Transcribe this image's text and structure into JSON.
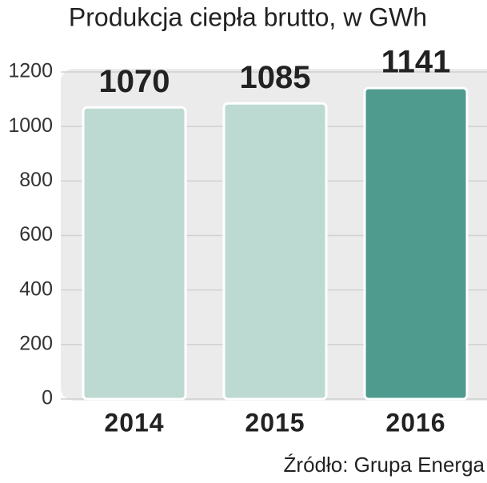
{
  "chart_data": {
    "type": "bar",
    "title": "Produkcja ciepła brutto, w GWh",
    "categories": [
      "2014",
      "2015",
      "2016"
    ],
    "values": [
      1070,
      1085,
      1141
    ],
    "colors": [
      "#bcdad1",
      "#bcdad1",
      "#4f9b8e"
    ],
    "ylim": [
      0,
      1200
    ],
    "yticks": [
      0,
      200,
      400,
      600,
      800,
      1000,
      1200
    ],
    "grid": true,
    "source": "Źródło: Grupa Energa"
  }
}
